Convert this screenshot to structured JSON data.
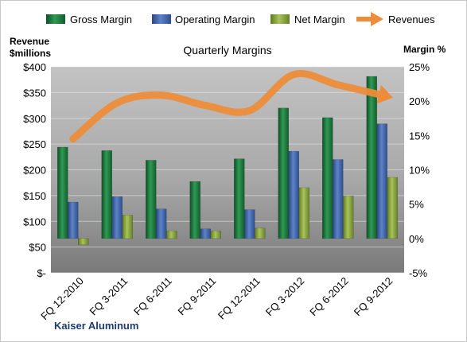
{
  "chart_data": {
    "type": "bar",
    "title": "Quarterly Margins",
    "left_axis_title": [
      "Revenue",
      "$millions"
    ],
    "right_axis_title": "Margin %",
    "categories": [
      "FQ 12-2010",
      "FQ 3-2011",
      "FQ 6-2011",
      "FQ 9-2011",
      "FQ 12-2011",
      "FQ 3-2012",
      "FQ 6-2012",
      "FQ 9-2012"
    ],
    "left_axis": {
      "ylim": [
        0,
        400
      ],
      "ticks": [
        0,
        50,
        100,
        150,
        200,
        250,
        300,
        350,
        400
      ],
      "tick_labels": [
        "$-",
        "$50",
        "$100",
        "$150",
        "$200",
        "$250",
        "$300",
        "$350",
        "$400"
      ]
    },
    "right_axis": {
      "ylim": [
        -5,
        25
      ],
      "ticks": [
        -5,
        0,
        5,
        10,
        15,
        20,
        25
      ],
      "tick_labels": [
        "-5%",
        "0%",
        "5%",
        "10%",
        "15%",
        "20%",
        "25%"
      ]
    },
    "series": [
      {
        "name": "Gross Margin",
        "axis": "right",
        "kind": "bar",
        "color": "#1e7a3c",
        "values": [
          13.3,
          12.8,
          11.4,
          8.3,
          11.6,
          19.0,
          17.6,
          23.6
        ]
      },
      {
        "name": "Operating Margin",
        "axis": "right",
        "kind": "bar",
        "color": "#3f63a8",
        "values": [
          5.3,
          6.1,
          4.3,
          1.4,
          4.2,
          12.7,
          11.5,
          16.7
        ]
      },
      {
        "name": "Net Margin",
        "axis": "right",
        "kind": "bar",
        "color": "#8aa53a",
        "values": [
          -0.9,
          3.4,
          1.1,
          1.1,
          1.5,
          7.4,
          6.2,
          8.9
        ]
      },
      {
        "name": "Revenues",
        "axis": "left",
        "kind": "line",
        "color": "#ed8c3a",
        "values": [
          260,
          330,
          345,
          325,
          315,
          385,
          365,
          345
        ]
      }
    ],
    "legend_position": "top",
    "grid": true
  },
  "footer": {
    "company": "Kaiser Aluminum"
  }
}
